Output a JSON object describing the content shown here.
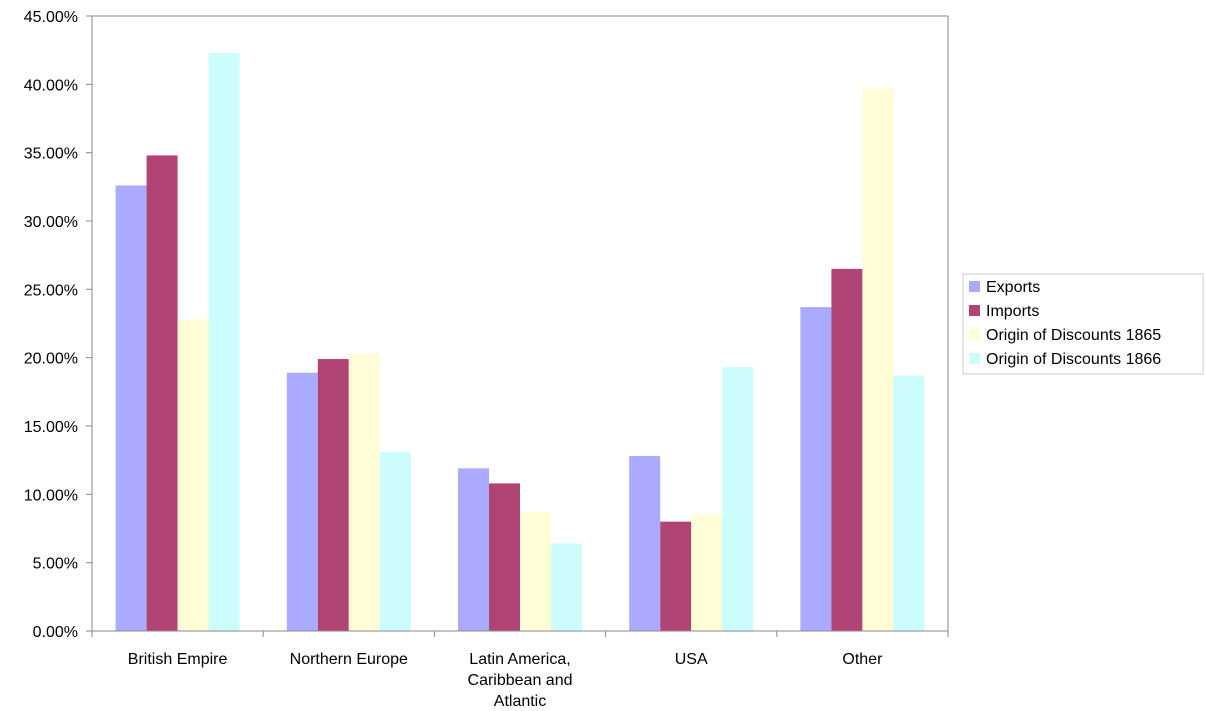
{
  "chart_data": {
    "type": "bar",
    "categories": [
      [
        "British Empire"
      ],
      [
        "Northern Europe"
      ],
      [
        "Latin America,",
        "Caribbean and",
        "Atlantic"
      ],
      [
        "USA"
      ],
      [
        "Other"
      ]
    ],
    "series": [
      {
        "name": "Exports",
        "color": "#aaaaff",
        "values": [
          0.326,
          0.189,
          0.119,
          0.128,
          0.237
        ]
      },
      {
        "name": "Imports",
        "color": "#b04575",
        "values": [
          0.348,
          0.199,
          0.108,
          0.08,
          0.265
        ]
      },
      {
        "name": "Origin of Discounts 1865",
        "color": "#fffcd6",
        "values": [
          0.228,
          0.203,
          0.087,
          0.085,
          0.397
        ]
      },
      {
        "name": "Origin of Discounts 1866",
        "color": "#ccfcfc",
        "values": [
          0.423,
          0.131,
          0.064,
          0.193,
          0.187
        ]
      }
    ],
    "ylim": [
      0,
      0.45
    ],
    "y_ticks": [
      0,
      0.05,
      0.1,
      0.15,
      0.2,
      0.25,
      0.3,
      0.35,
      0.4,
      0.45
    ],
    "y_tick_labels": [
      "0.00%",
      "5.00%",
      "10.00%",
      "15.00%",
      "20.00%",
      "25.00%",
      "30.00%",
      "35.00%",
      "40.00%",
      "45.00%"
    ],
    "title": "",
    "xlabel": "",
    "ylabel": "",
    "grid": false,
    "legend_position": "right"
  }
}
